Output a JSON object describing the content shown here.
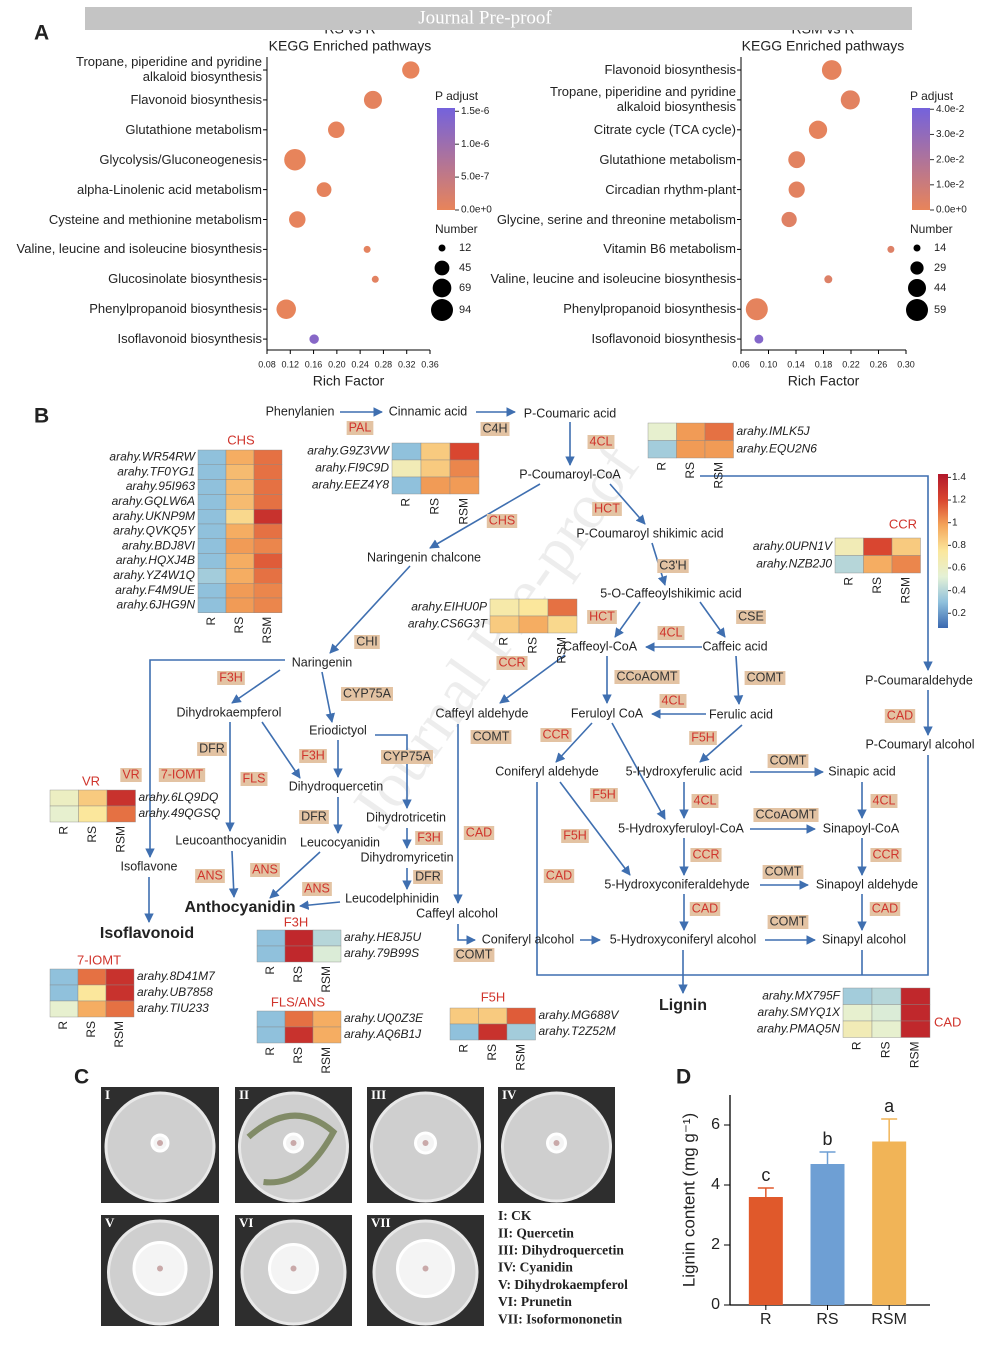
{
  "header": "Journal Pre-proof",
  "watermark": "Journal Pre-proof",
  "panels": [
    "A",
    "B",
    "C",
    "D"
  ],
  "chart_data": [
    {
      "type": "dot",
      "title": "RS vs R",
      "subtitle": "KEGG Enriched pathways",
      "categories": [
        "Tropane, piperidine and pyridine\nalkaloid biosynthesis",
        "Flavonoid biosynthesis",
        "Glutathione metabolism",
        "Glycolysis/Gluconeogenesis",
        "alpha-Linolenic acid metabolism",
        "Cysteine and methionine metabolism",
        "Valine, leucine and isoleucine biosynthesis",
        "Glucosinolate biosynthesis",
        "Phenylpropanoid biosynthesis",
        "Isoflavonoid biosynthesis"
      ],
      "values": [
        0.327,
        0.262,
        0.199,
        0.128,
        0.178,
        0.132,
        0.252,
        0.266,
        0.113,
        0.161
      ],
      "sizes": [
        60,
        65,
        55,
        90,
        45,
        55,
        12,
        12,
        75,
        20
      ],
      "padj": [
        2e-08,
        5e-08,
        3e-08,
        1e-08,
        4e-08,
        3e-08,
        6e-08,
        8e-08,
        1e-08,
        1.3e-06
      ],
      "xlim": [
        0.08,
        0.36
      ],
      "xticks": [
        0.08,
        0.12,
        0.16,
        {
          "value": 0.2,
          "label": "0.20"
        },
        0.24,
        0.28,
        0.32,
        0.36
      ],
      "x_label": "Rich Factor",
      "color_label": "P adjust",
      "clim": [
        0,
        1.55e-06
      ],
      "cticks": [
        {
          "value": 0,
          "label": "0.0e+0"
        },
        {
          "value": 5e-07,
          "label": "5.0e-7"
        },
        {
          "value": 1e-06,
          "label": "1.0e-6"
        },
        {
          "value": 1.5e-06,
          "label": "1.5e-6"
        }
      ],
      "colors": [
        "#e8845a",
        "#7462dc"
      ],
      "size_label": "Number",
      "size_legend": [
        12,
        45,
        69,
        94
      ]
    },
    {
      "type": "dot",
      "title": "RSM vs R",
      "subtitle": "KEGG Enriched pathways",
      "categories": [
        "Flavonoid biosynthesis",
        "Tropane, piperidine and pyridine\nalkaloid biosynthesis",
        "Citrate cycle (TCA cycle)",
        "Glutathione metabolism",
        "Circadian rhythm-plant",
        "Glycine, serine and threonine metabolism",
        "Vitamin B6 metabolism",
        "Valine, leucine and isoleucine biosynthesis",
        "Phenylpropanoid biosynthesis",
        "Isoflavonoid biosynthesis"
      ],
      "values": [
        0.192,
        0.219,
        0.172,
        0.141,
        0.141,
        0.13,
        0.278,
        0.187,
        0.083,
        0.086
      ],
      "sizes": [
        50,
        48,
        45,
        40,
        38,
        35,
        14,
        16,
        59,
        18
      ],
      "padj": [
        0.001,
        0.002,
        0.001,
        0.002,
        0.002,
        0.003,
        0.004,
        0.004,
        0.001,
        0.035
      ],
      "xlim": [
        0.06,
        0.3
      ],
      "xticks": [
        0.06,
        {
          "value": 0.1,
          "label": "0.10"
        },
        0.14,
        0.18,
        0.22,
        0.26,
        {
          "value": 0.3,
          "label": "0.30"
        }
      ],
      "x_label": "Rich Factor",
      "color_label": "P adjust",
      "clim": [
        0,
        0.0405
      ],
      "cticks": [
        {
          "value": 0,
          "label": "0.0e+0"
        },
        {
          "value": 0.01,
          "label": "1.0e-2"
        },
        {
          "value": 0.02,
          "label": "2.0e-2"
        },
        {
          "value": 0.03,
          "label": "3.0e-2"
        },
        {
          "value": 0.04,
          "label": "4.0e-2"
        }
      ],
      "colors": [
        "#e8845a",
        "#7462dc"
      ],
      "size_label": "Number",
      "size_legend": [
        14,
        29,
        44,
        59
      ]
    },
    {
      "type": "bar",
      "categories": [
        "R",
        "RS",
        "RSM"
      ],
      "values": [
        3.6,
        4.7,
        5.45
      ],
      "errors": [
        0.3,
        0.4,
        0.75
      ],
      "annotations": [
        "c",
        "b",
        "a"
      ],
      "colors": [
        "#e0592b",
        "#6e9fd4",
        "#f1b457"
      ],
      "ylim": [
        0,
        7
      ],
      "yticks": [
        0,
        2,
        4,
        6
      ],
      "y_label": "Lignin content (mg g⁻¹)"
    }
  ],
  "pathway": {
    "compounds": [
      "Phenylanien",
      "Cinnamic acid",
      "P-Coumaric acid",
      "P-Coumaroyl-CoA",
      "P-Coumaroyl shikimic acid",
      "Naringenin chalcone",
      "5-O-Caffeoylshikimic acid",
      "Caffeoyl-CoA",
      "Caffeic acid",
      "Naringenin",
      "P-Coumaraldehyde",
      "Dihydrokaempferol",
      "Caffeyl aldehyde",
      "Feruloyl CoA",
      "Ferulic acid",
      "P-Coumaryl alcohol",
      "Eriodictyol",
      "Coniferyl aldehyde",
      "5-Hydroxyferulic acid",
      "Sinapic acid",
      "Dihydroquercetin",
      "Dihydrotricetin",
      "5-Hydroxyferuloyl-CoA",
      "Sinapoyl-CoA",
      "Leucoanthocyanidin",
      "Leucocyanidin",
      "Dihydromyricetin",
      "Isoflavone",
      "5-Hydroxyconiferaldehyde",
      "Sinapoyl aldehyde",
      "Leucodelphinidin",
      "Anthocyanidin",
      "Caffeyl alcohol",
      "Isoflavonoid",
      "Coniferyl alcohol",
      "5-Hydroxyconiferyl alcohol",
      "Sinapyl alcohol",
      "Lignin"
    ],
    "enzymes": [
      {
        "label": "PAL",
        "color": "#d0342c"
      },
      {
        "label": "C4H",
        "color": "#333333"
      },
      {
        "label": "4CL",
        "color": "#d0342c"
      },
      {
        "label": "HCT",
        "color": "#d0342c"
      },
      {
        "label": "CHS",
        "color": "#d0342c"
      },
      {
        "label": "C3'H",
        "color": "#333333"
      },
      {
        "label": "HCT",
        "color": "#d0342c"
      },
      {
        "label": "CSE",
        "color": "#333333"
      },
      {
        "label": "4CL",
        "color": "#d0342c"
      },
      {
        "label": "CHI",
        "color": "#333333"
      },
      {
        "label": "CCR",
        "color": "#d0342c"
      },
      {
        "label": "F3H",
        "color": "#d0342c"
      },
      {
        "label": "CCoAOMT",
        "color": "#333333"
      },
      {
        "label": "COMT",
        "color": "#333333"
      },
      {
        "label": "CYP75A",
        "color": "#333333"
      },
      {
        "label": "4CL",
        "color": "#d0342c"
      },
      {
        "label": "CAD",
        "color": "#d0342c"
      },
      {
        "label": "F5H",
        "color": "#d0342c"
      },
      {
        "label": "COMT",
        "color": "#333333"
      },
      {
        "label": "CCR",
        "color": "#d0342c"
      },
      {
        "label": "DFR",
        "color": "#333333"
      },
      {
        "label": "F3H",
        "color": "#d0342c"
      },
      {
        "label": "CYP75A",
        "color": "#333333"
      },
      {
        "label": "COMT",
        "color": "#333333"
      },
      {
        "label": "VR",
        "color": "#d0342c"
      },
      {
        "label": "7-IOMT",
        "color": "#d0342c"
      },
      {
        "label": "FLS",
        "color": "#d0342c"
      },
      {
        "label": "F5H",
        "color": "#d0342c"
      },
      {
        "label": "4CL",
        "color": "#d0342c"
      },
      {
        "label": "CCoAOMT",
        "color": "#333333"
      },
      {
        "label": "4CL",
        "color": "#d0342c"
      },
      {
        "label": "DFR",
        "color": "#333333"
      },
      {
        "label": "CAD",
        "color": "#d0342c"
      },
      {
        "label": "F5H",
        "color": "#d0342c"
      },
      {
        "label": "F3H",
        "color": "#d0342c"
      },
      {
        "label": "CCR",
        "color": "#d0342c"
      },
      {
        "label": "CCR",
        "color": "#d0342c"
      },
      {
        "label": "ANS",
        "color": "#d0342c"
      },
      {
        "label": "ANS",
        "color": "#d0342c"
      },
      {
        "label": "COMT",
        "color": "#333333"
      },
      {
        "label": "CAD",
        "color": "#d0342c"
      },
      {
        "label": "DFR",
        "color": "#333333"
      },
      {
        "label": "ANS",
        "color": "#d0342c"
      },
      {
        "label": "CAD",
        "color": "#d0342c"
      },
      {
        "label": "COMT",
        "color": "#333333"
      },
      {
        "label": "CAD",
        "color": "#d0342c"
      },
      {
        "label": "COMT",
        "color": "#333333"
      }
    ],
    "heat_scale": {
      "clim": [
        0.07,
        1.43
      ],
      "ticks": [
        0.2,
        0.4,
        0.6,
        0.8,
        1,
        1.2,
        1.4
      ],
      "colors": [
        "#3a68b0",
        "#8fc0dc",
        "#e4f1d6",
        "#fbe79c",
        "#f4a55a",
        "#d9452f",
        "#b2182b"
      ]
    },
    "heatmaps": [
      {
        "title": "CHS",
        "genes": [
          "arahy.WR54RW",
          "arahy.TF0YG1",
          "arahy.95I963",
          "arahy.GQLW6A",
          "arahy.UKNP9M",
          "arahy.QVKQ5Y",
          "arahy.BDJ8VI",
          "arahy.HQXJ4B",
          "arahy.YZ4W1Q",
          "arahy.F4M9UE",
          "arahy.6JHG9N"
        ],
        "columns": [
          "R",
          "RS",
          "RSM"
        ],
        "values": [
          [
            0.3,
            0.95,
            1.1
          ],
          [
            0.3,
            0.9,
            1.1
          ],
          [
            0.3,
            0.9,
            1.1
          ],
          [
            0.3,
            0.9,
            1.1
          ],
          [
            0.3,
            0.8,
            1.3
          ],
          [
            0.3,
            0.95,
            1.1
          ],
          [
            0.3,
            1.0,
            1.05
          ],
          [
            0.3,
            0.95,
            1.15
          ],
          [
            0.35,
            0.95,
            1.1
          ],
          [
            0.3,
            1.0,
            1.05
          ],
          [
            0.3,
            1.0,
            1.05
          ]
        ]
      },
      {
        "genes": [
          "arahy.G9Z3VW",
          "arahy.FI9C9D",
          "arahy.EEZ4Y8"
        ],
        "columns": [
          "R",
          "RS",
          "RSM"
        ],
        "values": [
          [
            0.3,
            0.85,
            1.2
          ],
          [
            0.65,
            0.85,
            1.05
          ],
          [
            0.3,
            1.0,
            1.0
          ]
        ]
      },
      {
        "genes": [
          "arahy.IMLK5J",
          "arahy.EQU2N6"
        ],
        "columns": [
          "R",
          "RS",
          "RSM"
        ],
        "values": [
          [
            0.55,
            1.0,
            1.1
          ],
          [
            0.35,
            1.0,
            1.0
          ]
        ]
      },
      {
        "title": "CCR",
        "genes": [
          "arahy.0UPN1V",
          "arahy.NZB2J0"
        ],
        "columns": [
          "R",
          "RS",
          "RSM"
        ],
        "values": [
          [
            0.65,
            1.2,
            0.85
          ],
          [
            0.4,
            0.95,
            1.05
          ]
        ]
      },
      {
        "genes": [
          "arahy.EIHU0P",
          "arahy.CS6G3T"
        ],
        "columns": [
          "R",
          "RS",
          "RSM"
        ],
        "values": [
          [
            0.7,
            0.75,
            1.1
          ],
          [
            0.85,
            0.95,
            0.8
          ]
        ]
      },
      {
        "title": "VR",
        "genes": [
          "arahy.6LQ9DQ",
          "arahy.49QGSQ"
        ],
        "columns": [
          "R",
          "RS",
          "RSM"
        ],
        "values": [
          [
            0.6,
            0.85,
            1.3
          ],
          [
            0.55,
            0.75,
            1.1
          ]
        ]
      },
      {
        "title": "7-IOMT",
        "genes": [
          "arahy.8D41M7",
          "arahy.UB7858",
          "arahy.TIU233"
        ],
        "columns": [
          "R",
          "RS",
          "RSM"
        ],
        "values": [
          [
            0.3,
            1.1,
            1.3
          ],
          [
            0.3,
            0.75,
            1.3
          ],
          [
            0.55,
            0.95,
            1.1
          ]
        ]
      },
      {
        "title": "F3H",
        "genes": [
          "arahy.HE8J5U",
          "arahy.79B99S"
        ],
        "columns": [
          "R",
          "RS",
          "RSM"
        ],
        "values": [
          [
            0.3,
            1.35,
            0.4
          ],
          [
            0.3,
            1.35,
            0.5
          ]
        ]
      },
      {
        "title": "FLS/ANS",
        "genes": [
          "arahy.UQ0Z3E",
          "arahy.AQ6B1J"
        ],
        "columns": [
          "R",
          "RS",
          "RSM"
        ],
        "values": [
          [
            0.3,
            1.1,
            0.95
          ],
          [
            0.3,
            1.3,
            0.95
          ]
        ]
      },
      {
        "title": "F5H",
        "genes": [
          "arahy.MG688V",
          "arahy.T2Z52M"
        ],
        "columns": [
          "R",
          "RS",
          "RSM"
        ],
        "values": [
          [
            0.85,
            0.85,
            1.15
          ],
          [
            0.3,
            1.3,
            0.35
          ]
        ]
      },
      {
        "title": "CAD",
        "genes": [
          "arahy.MX795F",
          "arahy.SMYQ1X",
          "arahy.PMAQ5N"
        ],
        "columns": [
          "R",
          "RS",
          "RSM"
        ],
        "values": [
          [
            0.35,
            0.4,
            1.35
          ],
          [
            0.55,
            0.5,
            1.35
          ],
          [
            0.65,
            0.55,
            1.35
          ]
        ]
      }
    ]
  },
  "panel_c": {
    "plates": [
      "I",
      "II",
      "III",
      "IV",
      "V",
      "VI",
      "VII"
    ],
    "legend": [
      "I: CK",
      "II: Quercetin",
      "III: Dihydroquercetin",
      "IV: Cyanidin",
      "V: Dihydrokaempferol",
      "VI: Prunetin",
      "VII: Isoformononetin"
    ]
  }
}
